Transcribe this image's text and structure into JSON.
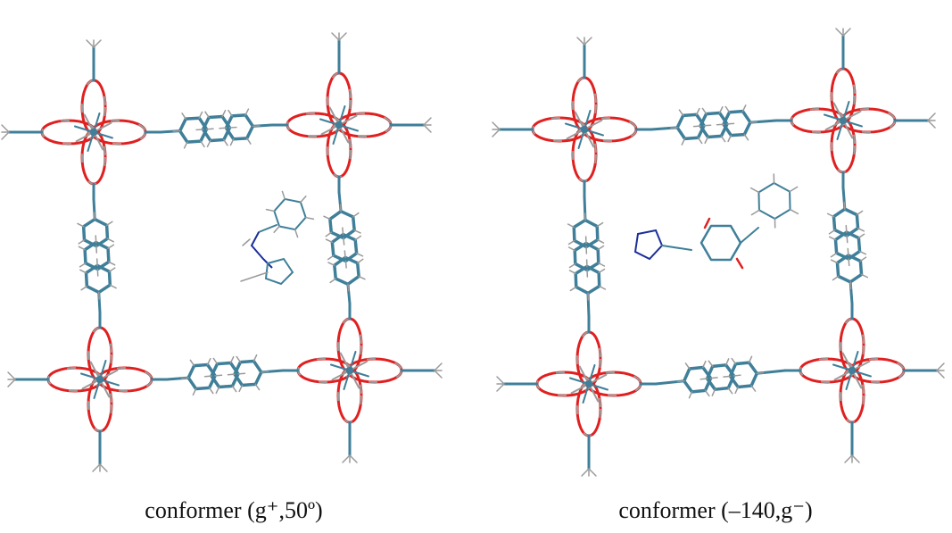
{
  "figure": {
    "panels": [
      {
        "caption": "conformer (g⁺,50º)"
      },
      {
        "caption": "conformer (–140,g⁻)"
      }
    ]
  }
}
